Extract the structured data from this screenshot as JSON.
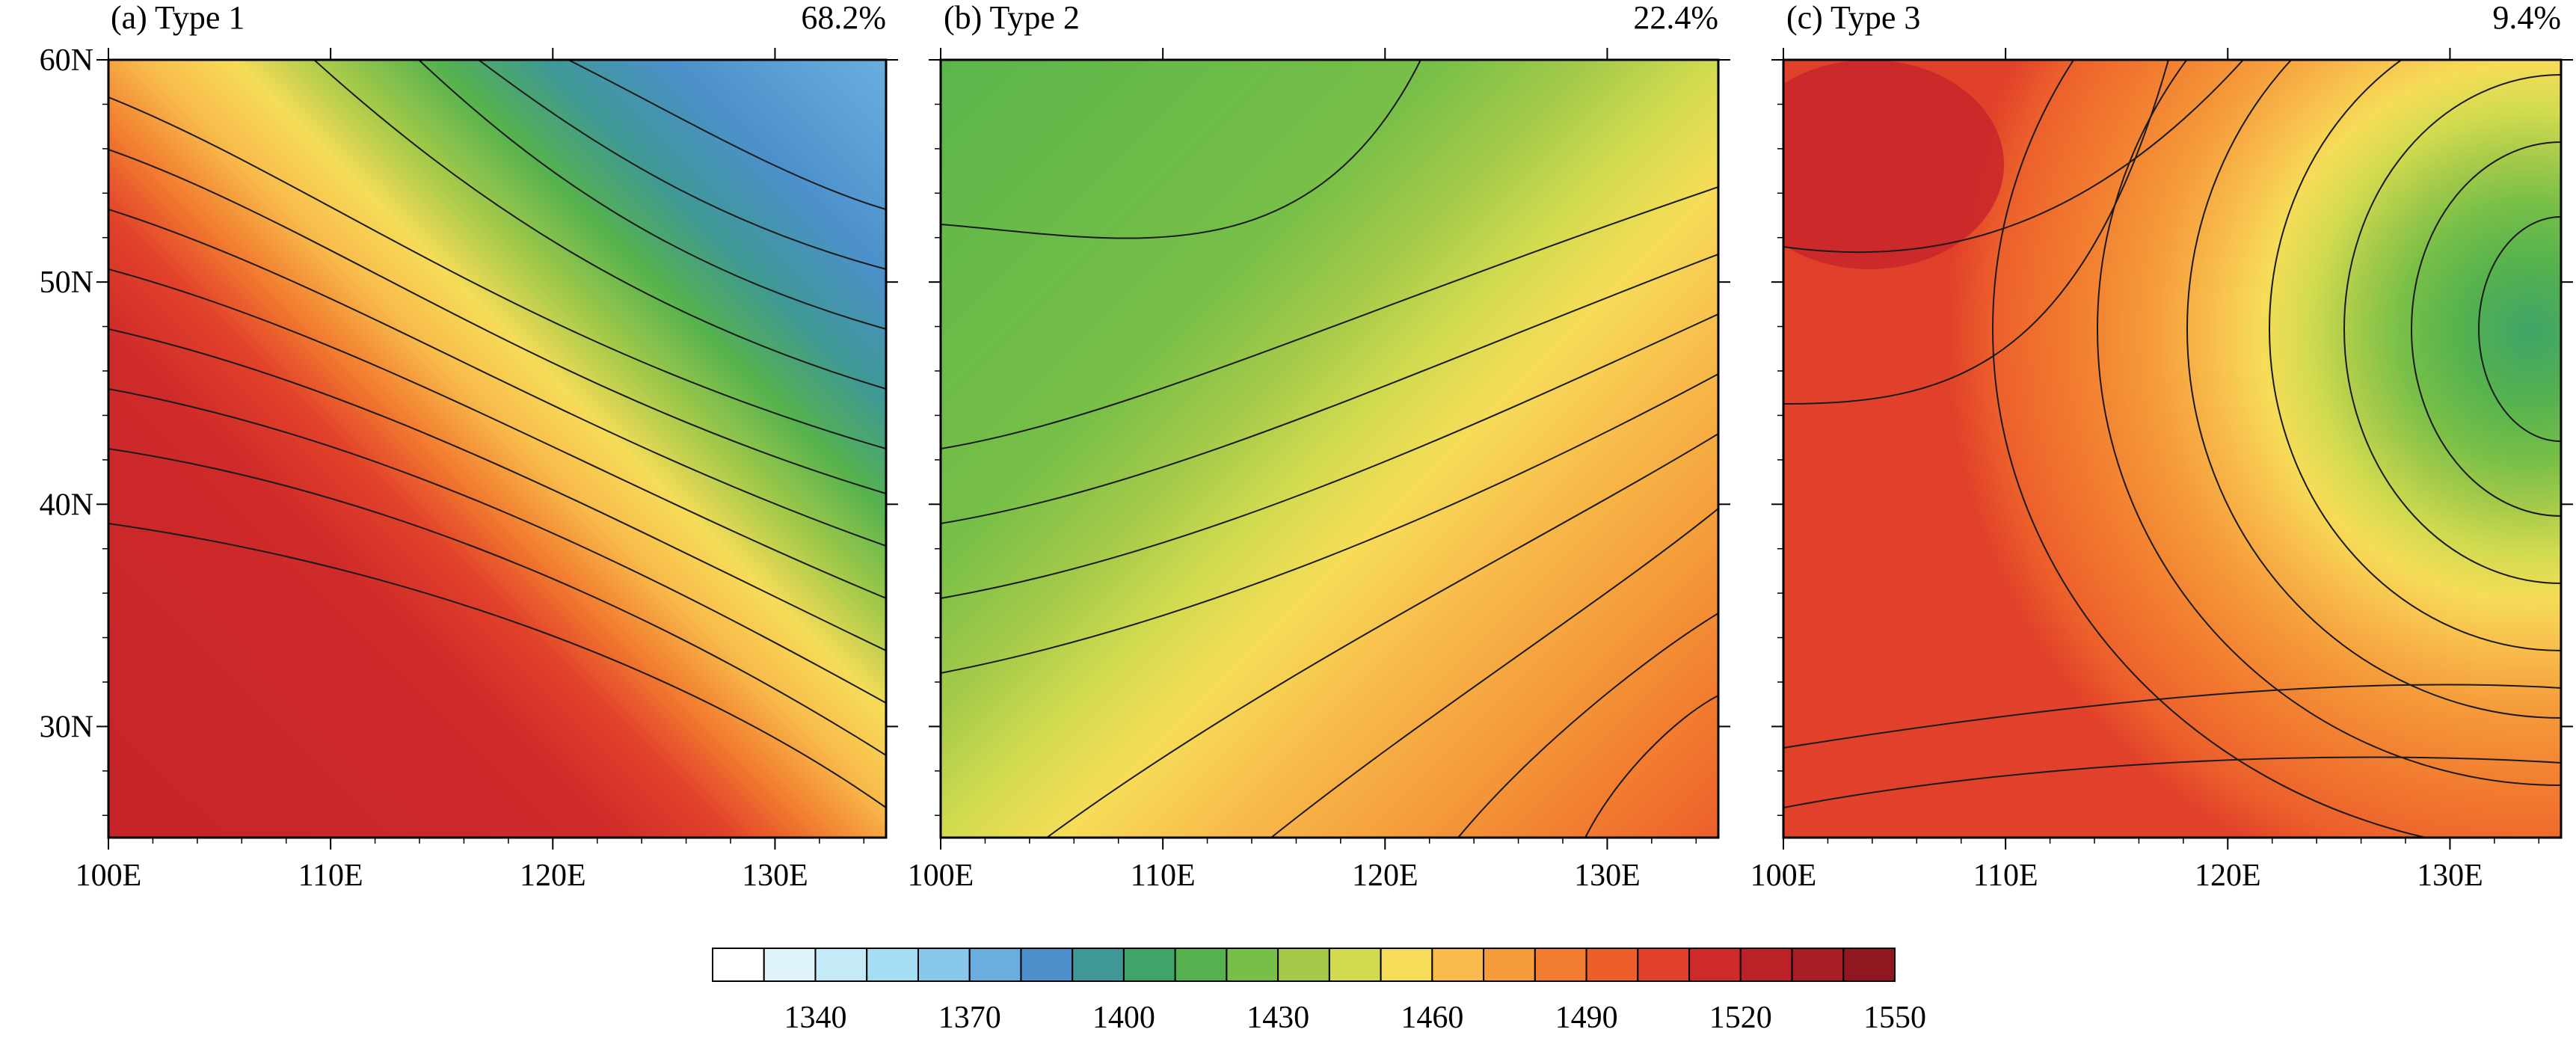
{
  "figure": {
    "panels": [
      {
        "id": "a",
        "title": "(a) Type 1",
        "percent": "68.2%"
      },
      {
        "id": "b",
        "title": "(b) Type 2",
        "percent": "22.4%"
      },
      {
        "id": "c",
        "title": "(c) Type 3",
        "percent": "9.4%"
      }
    ],
    "lon_ticks": [
      "100E",
      "110E",
      "120E",
      "130E"
    ],
    "lat_ticks": [
      "60N",
      "50N",
      "40N",
      "30N"
    ],
    "extent": {
      "lon": [
        100,
        135
      ],
      "lat": [
        25,
        60
      ]
    }
  },
  "colorbar": {
    "colors": [
      "#ffffff",
      "#dff3fb",
      "#c4eaf8",
      "#a5ddf4",
      "#87c8ec",
      "#6aaedf",
      "#4c90cb",
      "#3f9896",
      "#3fa468",
      "#55b24e",
      "#77bf48",
      "#a5ca4a",
      "#d2db4f",
      "#f6dc58",
      "#f8bb4b",
      "#f59b3a",
      "#f27d30",
      "#ec5f2b",
      "#e1412a",
      "#cf2a2a",
      "#bc2128",
      "#a71c25",
      "#901620"
    ],
    "labels": [
      "1340",
      "1370",
      "1400",
      "1430",
      "1460",
      "1490",
      "1520",
      "1550"
    ]
  }
}
